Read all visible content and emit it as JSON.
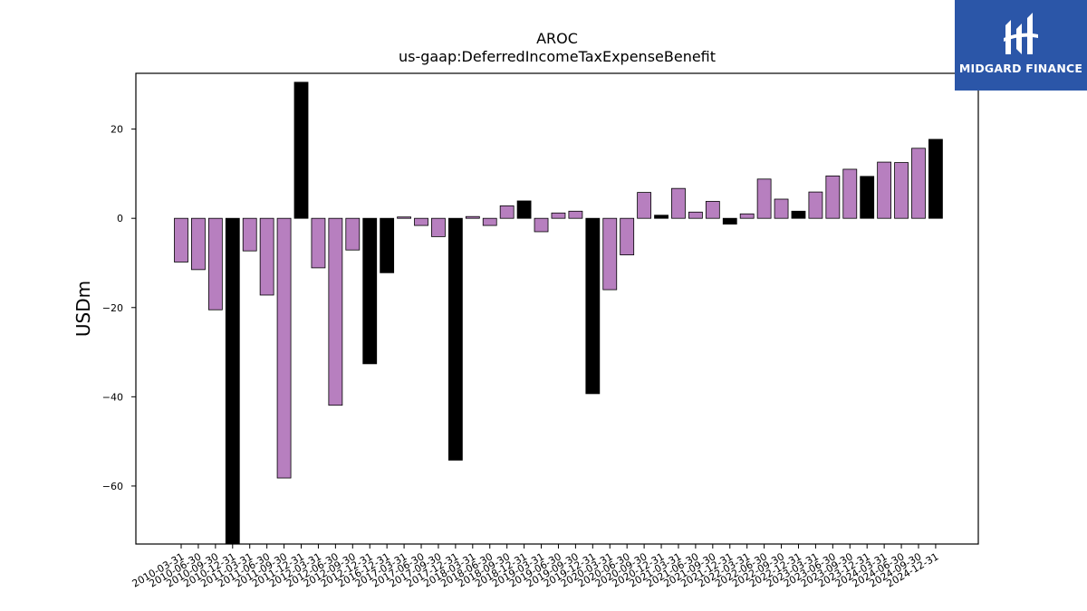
{
  "chart_data": {
    "type": "bar",
    "title": "AROC",
    "subtitle": "us-gaap:DeferredIncomeTaxExpenseBenefit",
    "ylabel": "USDm",
    "xlabel": "",
    "ylim": [
      -73,
      32.5
    ],
    "yticks": [
      20,
      0,
      -20,
      -40,
      -60
    ],
    "ytick_labels": [
      "20",
      "0",
      "−20",
      "−40",
      "−60"
    ],
    "grid": false,
    "categories": [
      "2010-03-31",
      "2010-06-30",
      "2010-09-30",
      "2010-12-31",
      "2011-03-31",
      "2011-06-30",
      "2011-09-30",
      "2011-12-31",
      "2012-03-31",
      "2012-06-30",
      "2012-09-30",
      "2012-12-31",
      "2016-12-31",
      "2017-03-31",
      "2017-06-30",
      "2017-09-30",
      "2017-12-31",
      "2018-03-31",
      "2018-06-30",
      "2018-09-30",
      "2018-12-31",
      "2019-03-31",
      "2019-06-30",
      "2019-09-30",
      "2019-12-31",
      "2020-03-31",
      "2020-06-30",
      "2020-09-30",
      "2020-12-31",
      "2021-03-31",
      "2021-06-30",
      "2021-09-30",
      "2021-12-31",
      "2022-03-31",
      "2022-06-30",
      "2022-09-30",
      "2022-12-31",
      "2023-03-31",
      "2023-06-30",
      "2023-09-30",
      "2023-12-31",
      "2024-03-31",
      "2024-06-30",
      "2024-09-30",
      "2024-12-31"
    ],
    "values": [
      -9.8,
      -11.5,
      -20.5,
      -75,
      -7.3,
      -17.2,
      -58.2,
      30.5,
      -11.1,
      -41.9,
      -7.1,
      -32.6,
      -12.2,
      0.3,
      -1.6,
      -4.1,
      -54.2,
      0.4,
      -1.6,
      2.8,
      3.9,
      -3.0,
      1.2,
      1.6,
      -39.3,
      -16.0,
      -8.2,
      5.8,
      0.7,
      6.7,
      1.4,
      3.8,
      -1.3,
      1.0,
      8.8,
      4.3,
      1.6,
      5.9,
      9.5,
      11.0,
      9.4,
      12.6,
      12.5,
      15.7,
      17.7
    ],
    "bar_color_quarterly": "#b77fbf",
    "bar_color_annual": "#000000",
    "annual_flags": [
      false,
      false,
      false,
      true,
      false,
      false,
      false,
      true,
      false,
      false,
      false,
      true,
      true,
      false,
      false,
      false,
      true,
      false,
      false,
      false,
      true,
      false,
      false,
      false,
      true,
      false,
      false,
      false,
      true,
      false,
      false,
      false,
      true,
      false,
      false,
      false,
      true,
      false,
      false,
      false,
      true,
      false,
      false,
      false,
      true
    ]
  },
  "logo": {
    "text": "MIDGARD FINANCE",
    "background": "#2b56a8"
  }
}
